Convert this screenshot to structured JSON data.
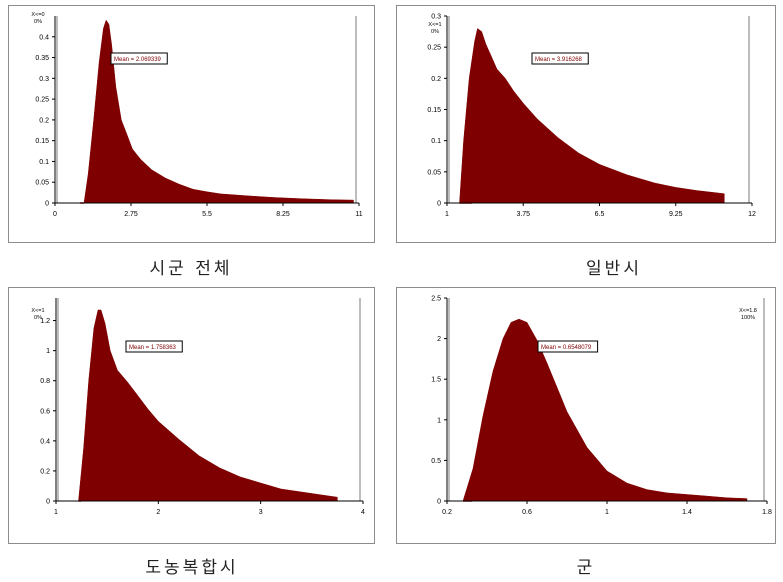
{
  "colors": {
    "fill": "#7f0000",
    "axis": "#000000",
    "marker_line": "#bdbdbd",
    "box_border": "#8c8c8c"
  },
  "chart_data": [
    {
      "type": "area",
      "caption": "시군 전체",
      "xlim": [
        0,
        11
      ],
      "ylim": [
        0,
        0.45
      ],
      "xticks": [
        "0",
        "2.75",
        "5.5",
        "8.25",
        "11"
      ],
      "yticks": [
        "0",
        "0.05",
        "0.1",
        "0.15",
        "0.2",
        "0.25",
        "0.3",
        "0.35",
        "0.4"
      ],
      "mean_label": "Mean = 2.069339",
      "marker_left": "X<=0\n0%",
      "marker_right": "",
      "x": [
        1.05,
        1.2,
        1.4,
        1.6,
        1.75,
        1.85,
        1.95,
        2.05,
        2.2,
        2.4,
        2.6,
        2.8,
        3.1,
        3.5,
        4.0,
        4.5,
        5.0,
        5.5,
        6.0,
        7.0,
        8.0,
        9.0,
        10.0,
        10.8
      ],
      "y": [
        0,
        0.07,
        0.2,
        0.34,
        0.42,
        0.44,
        0.43,
        0.38,
        0.28,
        0.2,
        0.165,
        0.13,
        0.105,
        0.08,
        0.06,
        0.045,
        0.033,
        0.027,
        0.022,
        0.017,
        0.013,
        0.01,
        0.008,
        0.007
      ]
    },
    {
      "type": "area",
      "caption": "일반시",
      "xlim": [
        1,
        12
      ],
      "ylim": [
        0,
        0.3
      ],
      "xticks": [
        "1",
        "3.75",
        "6.5",
        "9.25",
        "12"
      ],
      "yticks": [
        "0",
        "0.05",
        "0.1",
        "0.15",
        "0.2",
        "0.25",
        "0.3"
      ],
      "mean_label": "Mean = 3.916268",
      "marker_left": "X<=1\n0%",
      "marker_right": "",
      "x": [
        1.45,
        1.6,
        1.8,
        2.0,
        2.1,
        2.25,
        2.4,
        2.6,
        2.8,
        3.1,
        3.4,
        3.75,
        4.25,
        5.0,
        5.75,
        6.5,
        7.5,
        8.5,
        9.25,
        10.0,
        11.0
      ],
      "y": [
        0,
        0.1,
        0.2,
        0.26,
        0.28,
        0.275,
        0.255,
        0.235,
        0.215,
        0.2,
        0.18,
        0.16,
        0.135,
        0.105,
        0.08,
        0.062,
        0.045,
        0.032,
        0.025,
        0.02,
        0.015
      ]
    },
    {
      "type": "area",
      "caption": "도농복합시",
      "xlim": [
        1,
        4
      ],
      "ylim": [
        0,
        1.35
      ],
      "xticks": [
        "1",
        "2",
        "3",
        "4"
      ],
      "yticks": [
        "0",
        "0.2",
        "0.4",
        "0.6",
        "0.8",
        "1",
        "1.2"
      ],
      "mean_label": "Mean = 1.758363",
      "marker_left": "X<=1\n0%",
      "marker_right": "",
      "x": [
        1.22,
        1.27,
        1.32,
        1.37,
        1.41,
        1.44,
        1.48,
        1.53,
        1.6,
        1.7,
        1.8,
        1.9,
        2.0,
        2.2,
        2.4,
        2.6,
        2.8,
        3.0,
        3.2,
        3.4,
        3.6,
        3.75
      ],
      "y": [
        0,
        0.35,
        0.8,
        1.15,
        1.27,
        1.27,
        1.18,
        1.0,
        0.87,
        0.79,
        0.7,
        0.61,
        0.53,
        0.41,
        0.3,
        0.22,
        0.16,
        0.12,
        0.08,
        0.06,
        0.04,
        0.025
      ]
    },
    {
      "type": "area",
      "caption": "군",
      "xlim": [
        0.2,
        1.8
      ],
      "ylim": [
        0,
        2.5
      ],
      "xticks": [
        "0.2",
        "0.6",
        "1",
        "1.4",
        "1.8"
      ],
      "yticks": [
        "0",
        "0.5",
        "1",
        "1.5",
        "2",
        "2.5"
      ],
      "mean_label": "Mean = 0.6548079",
      "marker_left": "",
      "marker_right": "X<=1.8\n100%",
      "x": [
        0.28,
        0.33,
        0.38,
        0.43,
        0.48,
        0.52,
        0.56,
        0.6,
        0.65,
        0.7,
        0.75,
        0.8,
        0.9,
        1.0,
        1.1,
        1.2,
        1.3,
        1.4,
        1.5,
        1.6,
        1.7
      ],
      "y": [
        0,
        0.4,
        1.05,
        1.6,
        2.0,
        2.2,
        2.24,
        2.2,
        1.98,
        1.7,
        1.4,
        1.1,
        0.66,
        0.37,
        0.22,
        0.14,
        0.1,
        0.08,
        0.06,
        0.04,
        0.03
      ]
    }
  ]
}
